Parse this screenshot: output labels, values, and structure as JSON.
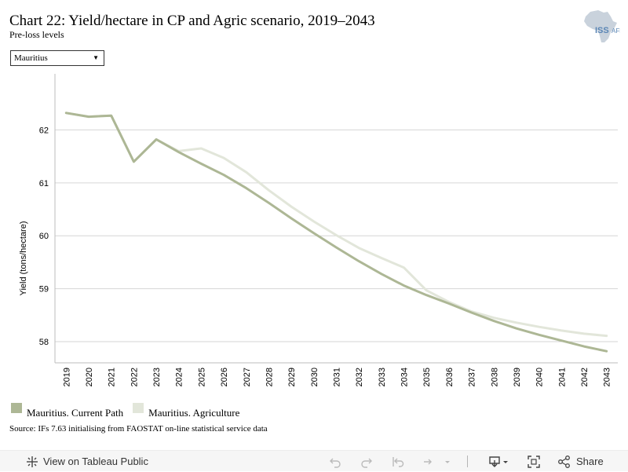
{
  "header": {
    "title": "Chart 22: Yield/hectare in CP and Agric scenario, 2019–2043",
    "subtitle": "Pre-loss levels"
  },
  "logo": {
    "text": "ISS",
    "suffix": "AFRICA",
    "color": "#5b86b5",
    "icon": "africa-map-logo"
  },
  "filter": {
    "selected": "Mauritius"
  },
  "chart_data": {
    "type": "line",
    "ylabel": "Yield (tons/hectare)",
    "xlabel": "",
    "ylim": [
      57.6,
      63.0
    ],
    "yticks": [
      58,
      59,
      60,
      61,
      62
    ],
    "x": [
      "2019",
      "2020",
      "2021",
      "2022",
      "2023",
      "2024",
      "2025",
      "2026",
      "2027",
      "2028",
      "2029",
      "2030",
      "2031",
      "2032",
      "2033",
      "2034",
      "2035",
      "2036",
      "2037",
      "2038",
      "2039",
      "2040",
      "2041",
      "2042",
      "2043"
    ],
    "series": [
      {
        "name": "Mauritius. Current Path",
        "color": "#adb795",
        "values": [
          62.32,
          62.25,
          62.27,
          61.4,
          61.82,
          61.58,
          61.36,
          61.15,
          60.9,
          60.62,
          60.33,
          60.05,
          59.78,
          59.52,
          59.28,
          59.06,
          58.88,
          58.72,
          58.55,
          58.39,
          58.25,
          58.13,
          58.02,
          57.91,
          57.82
        ]
      },
      {
        "name": "Mauritius. Agriculture",
        "color": "#e2e6da",
        "values": [
          62.32,
          62.25,
          62.27,
          61.4,
          61.82,
          61.6,
          61.65,
          61.47,
          61.2,
          60.86,
          60.55,
          60.27,
          60.01,
          59.77,
          59.58,
          59.4,
          58.97,
          58.75,
          58.57,
          58.45,
          58.36,
          58.28,
          58.21,
          58.15,
          58.11
        ]
      }
    ],
    "grid": true,
    "legend": "bottom-left"
  },
  "source": "Source: IFs 7.63 initialising from FAOSTAT on-line statistical service data",
  "toolbar": {
    "view_label": "View on Tableau Public",
    "share_label": "Share"
  }
}
